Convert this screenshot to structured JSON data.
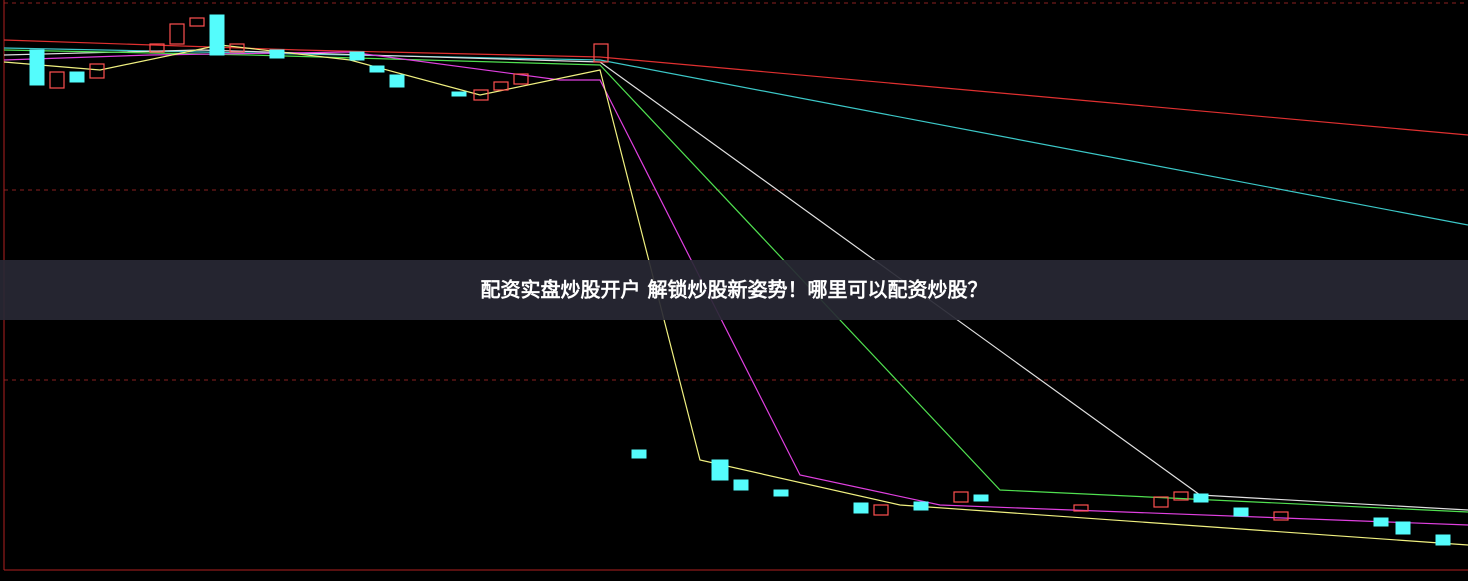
{
  "banner": {
    "title": "配资实盘炒股开户 解锁炒股新姿势！哪里可以配资炒股？"
  }
}
